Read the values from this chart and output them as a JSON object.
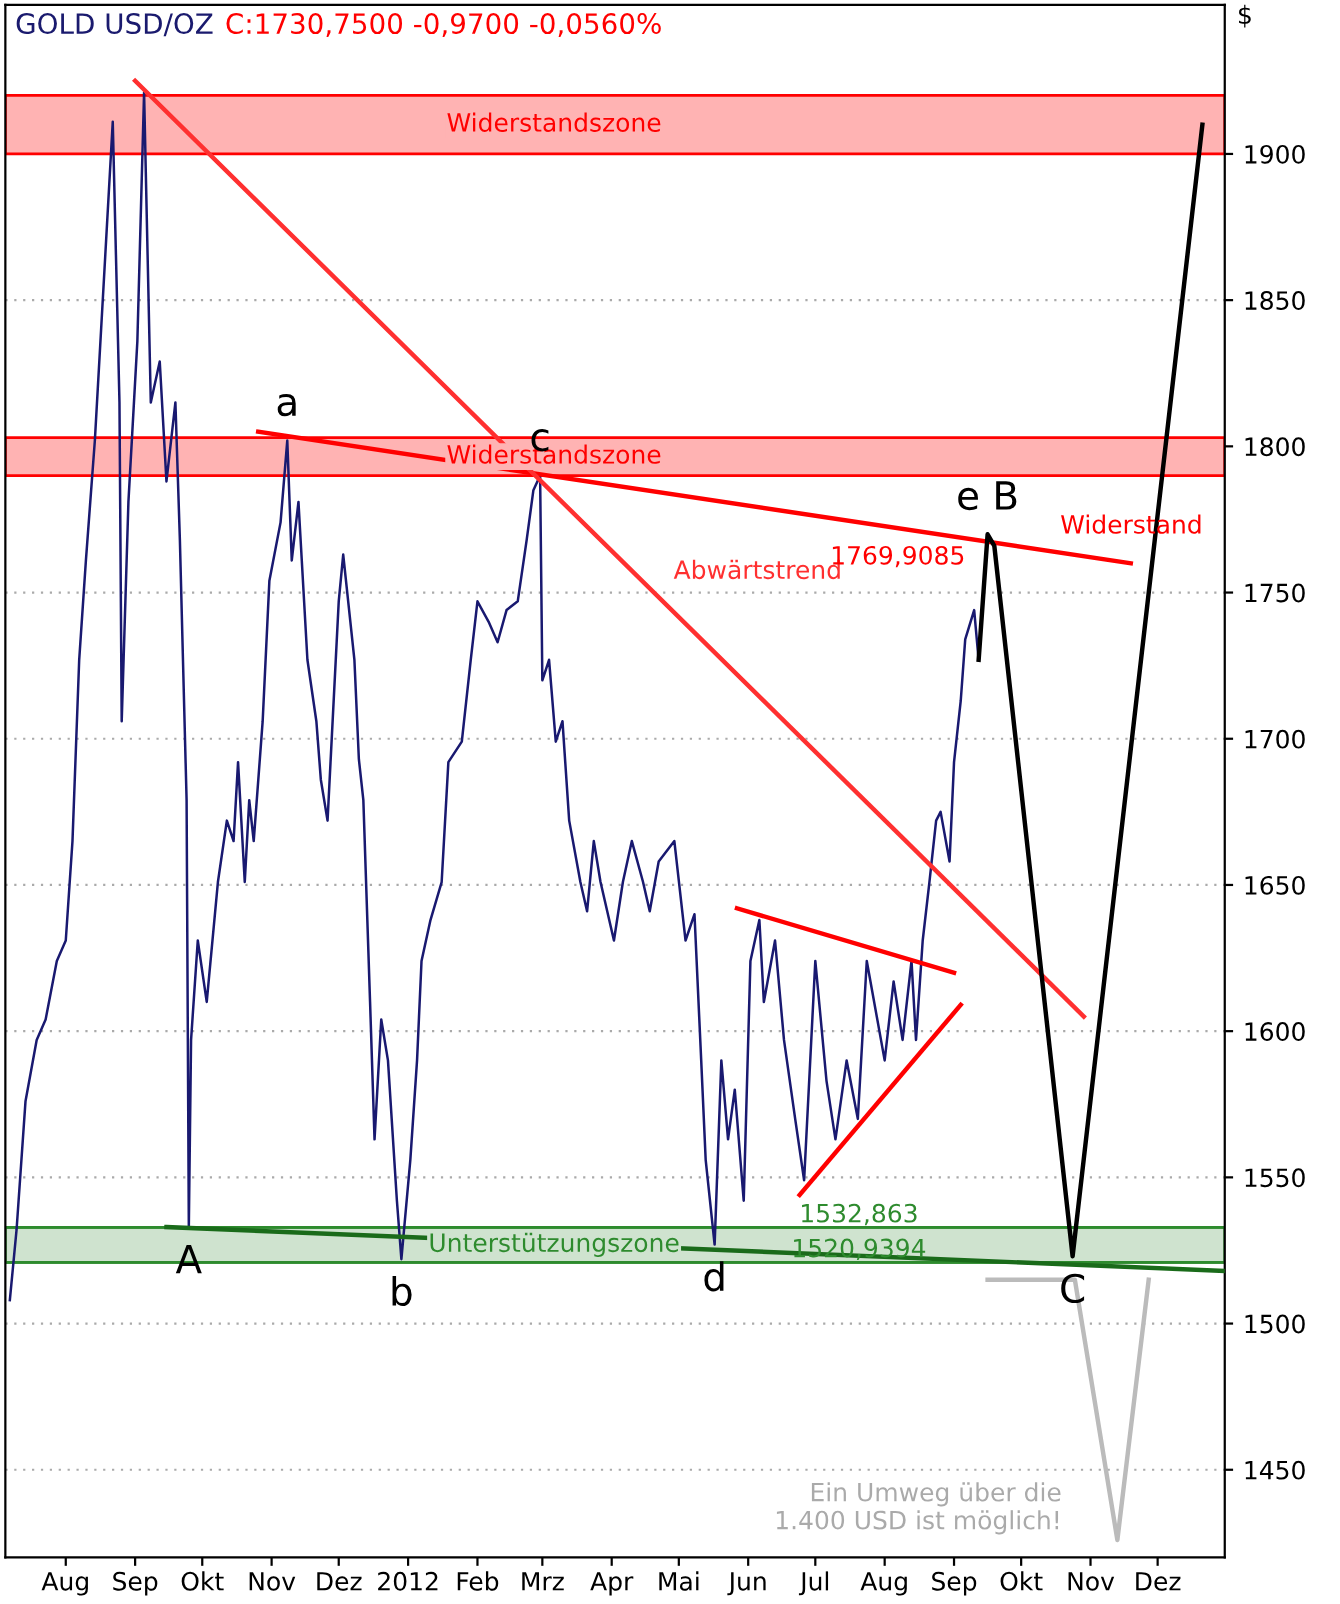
{
  "chart_data": {
    "type": "line",
    "title": "GOLD USD/OZ",
    "subtitle": "C:1730,7500 -0,9700 -0,0560%",
    "ylabel": "$",
    "ylim": [
      1420,
      1951
    ],
    "yticks": [
      1450,
      1500,
      1550,
      1600,
      1650,
      1700,
      1750,
      1800,
      1850,
      1900
    ],
    "xlim": [
      "2011-07-05",
      "2012-12-31"
    ],
    "xticks": [
      {
        "value": "2011-08-01",
        "label": "Aug"
      },
      {
        "value": "2011-09-01",
        "label": "Sep"
      },
      {
        "value": "2011-10-01",
        "label": "Okt"
      },
      {
        "value": "2011-11-01",
        "label": "Nov"
      },
      {
        "value": "2011-12-01",
        "label": "Dez"
      },
      {
        "value": "2012-01-01",
        "label": "2012"
      },
      {
        "value": "2012-02-01",
        "label": "Feb"
      },
      {
        "value": "2012-03-01",
        "label": "Mrz"
      },
      {
        "value": "2012-04-01",
        "label": "Apr"
      },
      {
        "value": "2012-05-01",
        "label": "Mai"
      },
      {
        "value": "2012-06-01",
        "label": "Jun"
      },
      {
        "value": "2012-07-01",
        "label": "Jul"
      },
      {
        "value": "2012-08-01",
        "label": "Aug"
      },
      {
        "value": "2012-09-01",
        "label": "Sep"
      },
      {
        "value": "2012-10-01",
        "label": "Okt"
      },
      {
        "value": "2012-11-01",
        "label": "Nov"
      },
      {
        "value": "2012-12-01",
        "label": "Dez"
      }
    ],
    "grid": "y",
    "legend": false,
    "marker": "none",
    "line_style": "solid",
    "series": [
      {
        "color": "#191970",
        "x": [
          "2011-07-07",
          "2011-07-10",
          "2011-07-14",
          "2011-07-19",
          "2011-07-23",
          "2011-07-28",
          "2011-08-01",
          "2011-08-04",
          "2011-08-07",
          "2011-08-10",
          "2011-08-14",
          "2011-08-19",
          "2011-08-22",
          "2011-08-25",
          "2011-08-26",
          "2011-08-29",
          "2011-09-02",
          "2011-09-05",
          "2011-09-08",
          "2011-09-12",
          "2011-09-15",
          "2011-09-19",
          "2011-09-21",
          "2011-09-24",
          "2011-09-25",
          "2011-09-26",
          "2011-09-29",
          "2011-10-03",
          "2011-10-08",
          "2011-10-12",
          "2011-10-15",
          "2011-10-17",
          "2011-10-20",
          "2011-10-22",
          "2011-10-24",
          "2011-10-28",
          "2011-10-31",
          "2011-11-05",
          "2011-11-08",
          "2011-11-10",
          "2011-11-13",
          "2011-11-17",
          "2011-11-21",
          "2011-11-23",
          "2011-11-26",
          "2011-12-01",
          "2011-12-03",
          "2011-12-08",
          "2011-12-10",
          "2011-12-12",
          "2011-12-15",
          "2011-12-17",
          "2011-12-20",
          "2011-12-23",
          "2011-12-27",
          "2011-12-29",
          "2012-01-02",
          "2012-01-05",
          "2012-01-07",
          "2012-01-11",
          "2012-01-16",
          "2012-01-19",
          "2012-01-25",
          "2012-01-29",
          "2012-02-01",
          "2012-02-06",
          "2012-02-10",
          "2012-02-14",
          "2012-02-19",
          "2012-02-23",
          "2012-02-26",
          "2012-02-29",
          "2012-03-01",
          "2012-03-04",
          "2012-03-07",
          "2012-03-10",
          "2012-03-13",
          "2012-03-18",
          "2012-03-21",
          "2012-03-24",
          "2012-03-27",
          "2012-04-02",
          "2012-04-06",
          "2012-04-10",
          "2012-04-15",
          "2012-04-18",
          "2012-04-22",
          "2012-04-29",
          "2012-05-04",
          "2012-05-08",
          "2012-05-11",
          "2012-05-13",
          "2012-05-17",
          "2012-05-20",
          "2012-05-23",
          "2012-05-26",
          "2012-05-30",
          "2012-06-02",
          "2012-06-06",
          "2012-06-08",
          "2012-06-13",
          "2012-06-17",
          "2012-06-22",
          "2012-06-26",
          "2012-07-01",
          "2012-07-06",
          "2012-07-10",
          "2012-07-15",
          "2012-07-20",
          "2012-07-24",
          "2012-08-01",
          "2012-08-05",
          "2012-08-09",
          "2012-08-13",
          "2012-08-15",
          "2012-08-18",
          "2012-08-21",
          "2012-08-24",
          "2012-08-26",
          "2012-08-30",
          "2012-09-01",
          "2012-09-04",
          "2012-09-06",
          "2012-09-10",
          "2012-09-12"
        ],
        "values": [
          1508,
          1532,
          1576,
          1597,
          1604,
          1624,
          1631,
          1665,
          1727,
          1761,
          1802,
          1870,
          1911,
          1815,
          1706,
          1781,
          1836,
          1921,
          1815,
          1829,
          1788,
          1815,
          1768,
          1679,
          1533,
          1597,
          1631,
          1610,
          1651,
          1672,
          1665,
          1692,
          1651,
          1679,
          1665,
          1706,
          1754,
          1774,
          1802,
          1761,
          1781,
          1727,
          1706,
          1686,
          1672,
          1747,
          1763,
          1727,
          1693,
          1679,
          1610,
          1563,
          1604,
          1590,
          1542,
          1522,
          1556,
          1590,
          1624,
          1638,
          1651,
          1692,
          1699,
          1727,
          1747,
          1740,
          1733,
          1744,
          1747,
          1768,
          1785,
          1790,
          1720,
          1727,
          1699,
          1706,
          1672,
          1651,
          1641,
          1665,
          1651,
          1631,
          1651,
          1665,
          1651,
          1641,
          1658,
          1665,
          1631,
          1640,
          1590,
          1556,
          1527,
          1590,
          1563,
          1580,
          1542,
          1624,
          1638,
          1610,
          1631,
          1597,
          1570,
          1549,
          1624,
          1583,
          1563,
          1590,
          1570,
          1624,
          1590,
          1617,
          1597,
          1624,
          1597,
          1631,
          1651,
          1672,
          1675,
          1658,
          1692,
          1713,
          1734,
          1744,
          1727
        ]
      },
      {
        "name": "Widerstand",
        "color": "#ff0000",
        "x": [
          "2011-10-26",
          "2012-11-19"
        ],
        "values": [
          1805,
          1760
        ]
      },
      {
        "name": "Abwärtstrend",
        "color": "#ff3030",
        "x": [
          "2011-09-01",
          "2012-10-29"
        ],
        "values": [
          1925,
          1605
        ]
      },
      {
        "color": "#ff0000",
        "x": [
          "2012-05-27",
          "2012-09-01"
        ],
        "values": [
          1642,
          1620
        ]
      },
      {
        "color": "#ff0000",
        "x": [
          "2012-06-24",
          "2012-09-04"
        ],
        "values": [
          1544,
          1609
        ]
      },
      {
        "color": "#1a6b1a",
        "x": [
          "2011-09-15",
          "2012-12-31"
        ],
        "values": [
          1533,
          1518
        ]
      },
      {
        "color": "#000000",
        "x": [
          "2012-09-12",
          "2012-09-16",
          "2012-09-19",
          "2012-10-24",
          "2012-12-21"
        ],
        "values": [
          1727,
          1769.9085,
          1766,
          1523,
          1910
        ],
        "value_labels": [
          null,
          "1769,9085",
          null,
          null,
          null
        ]
      },
      {
        "color": "#bbbbbb",
        "x": [
          "2012-09-16",
          "2012-10-25",
          "2012-11-13",
          "2012-11-27"
        ],
        "values": [
          1515,
          1515,
          1426,
          1515
        ]
      }
    ],
    "bands": [
      {
        "axis": "y",
        "from": 1900,
        "to": 1920,
        "label": "Widerstandszone",
        "color": "#ffb3b3"
      },
      {
        "axis": "y",
        "from": 1790,
        "to": 1803,
        "label": "Widerstandszone",
        "color": "#ffb3b3"
      },
      {
        "axis": "y",
        "from": 1520.9394,
        "to": 1532.863,
        "label": "Unterstützungszone",
        "color": "#cfe3cf"
      }
    ],
    "ref_lines": [
      {
        "axis": "y",
        "value": 1532.863,
        "label": "1532,863",
        "color": "#2e8b2e"
      },
      {
        "axis": "y",
        "value": 1520.9394,
        "label": "1520,9394",
        "color": "#2e8b2e"
      }
    ],
    "annotations": [
      {
        "text": "A",
        "x": "2011-09-25",
        "y": 1533
      },
      {
        "text": "a",
        "x": "2011-11-08",
        "y": 1802
      },
      {
        "text": "b",
        "x": "2011-12-29",
        "y": 1522
      },
      {
        "text": "c",
        "x": "2012-02-29",
        "y": 1790
      },
      {
        "text": "d",
        "x": "2012-05-17",
        "y": 1527
      },
      {
        "text": "e B",
        "x": "2012-09-16",
        "y": 1769.9085
      },
      {
        "text": "C",
        "x": "2012-10-24",
        "y": 1523
      },
      {
        "text": "Ein Umweg über die\n1.400 USD ist möglich!",
        "x": "2012-11-13",
        "y": 1426
      }
    ]
  }
}
